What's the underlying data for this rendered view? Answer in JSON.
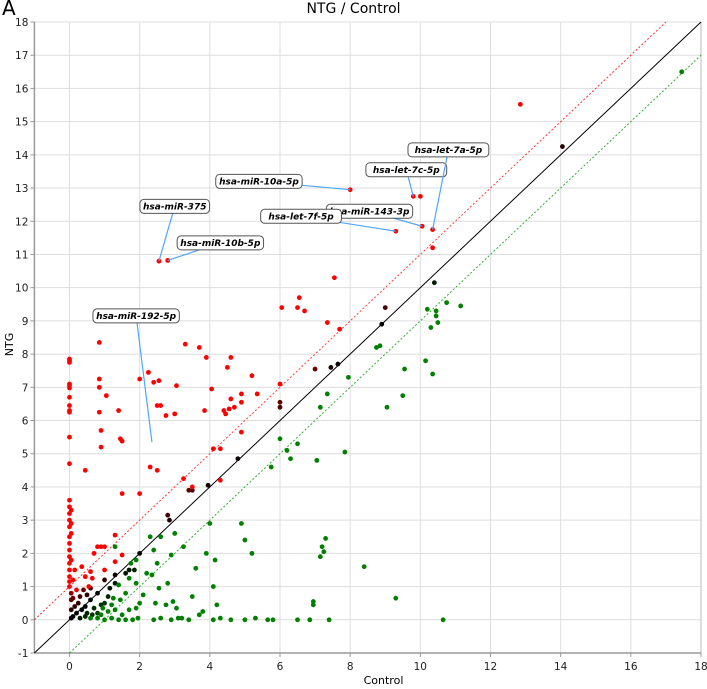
{
  "panel_letter": "A",
  "chart_data": {
    "type": "scatter",
    "title": "NTG / Control",
    "xlabel": "Control",
    "ylabel": "NTG",
    "xlim": [
      -1,
      18
    ],
    "ylim": [
      -1,
      18
    ],
    "x_ticks": [
      0,
      2,
      4,
      6,
      8,
      10,
      12,
      14,
      16,
      18
    ],
    "y_ticks": [
      -1,
      0,
      1,
      2,
      3,
      4,
      5,
      6,
      7,
      8,
      9,
      10,
      11,
      12,
      13,
      14,
      15,
      16,
      17,
      18
    ],
    "grid": true,
    "reference_lines": [
      {
        "name": "identity",
        "slope": 1,
        "intercept": 0,
        "color": "#000000",
        "style": "solid"
      },
      {
        "name": "upper-threshold",
        "slope": 1,
        "intercept": 1,
        "color": "#ff0000",
        "style": "dotted"
      },
      {
        "name": "lower-threshold",
        "slope": 1,
        "intercept": -1,
        "color": "#00a000",
        "style": "dotted"
      }
    ],
    "colors": {
      "up": "#ff0000",
      "neutral": "#000000",
      "down": "#008000",
      "leader": "#4da6ff"
    },
    "annotations": [
      {
        "label": "hsa-let-7c-5p",
        "x": 9.8,
        "y": 12.75,
        "label_x": 9.6,
        "label_y": 13.55
      },
      {
        "label": "hsa-let-7a-5p",
        "x": 10.35,
        "y": 11.75,
        "label_x": 10.8,
        "label_y": 14.15
      },
      {
        "label": "hsa-miR-10a-5p",
        "x": 8.0,
        "y": 12.95,
        "label_x": 5.4,
        "label_y": 13.2
      },
      {
        "label": "hsa-miR-143-3p",
        "x": 10.05,
        "y": 11.85,
        "label_x": 8.55,
        "label_y": 12.3
      },
      {
        "label": "hsa-let-7f-5p",
        "x": 9.3,
        "y": 11.7,
        "label_x": 6.6,
        "label_y": 12.15
      },
      {
        "label": "hsa-miR-375",
        "x": 2.55,
        "y": 10.8,
        "label_x": 3.0,
        "label_y": 12.45
      },
      {
        "label": "hsa-miR-10b-5p",
        "x": 2.8,
        "y": 10.82,
        "label_x": 4.3,
        "label_y": 11.35
      },
      {
        "label": "hsa-miR-192-5p",
        "x": 2.35,
        "y": 5.35,
        "label_x": 1.9,
        "label_y": 9.15
      }
    ],
    "points_up": [
      [
        12.85,
        15.52
      ],
      [
        10.0,
        12.75
      ],
      [
        8.0,
        12.95
      ],
      [
        9.8,
        12.75
      ],
      [
        10.05,
        11.85
      ],
      [
        10.35,
        11.75
      ],
      [
        9.3,
        11.7
      ],
      [
        2.55,
        10.8
      ],
      [
        2.8,
        10.82
      ],
      [
        10.35,
        11.2
      ],
      [
        7.55,
        10.3
      ],
      [
        6.55,
        9.7
      ],
      [
        6.5,
        9.4
      ],
      [
        6.05,
        9.4
      ],
      [
        6.7,
        9.3
      ],
      [
        7.7,
        8.75
      ],
      [
        7.35,
        8.95
      ],
      [
        0.0,
        7.85
      ],
      [
        0.0,
        7.8
      ],
      [
        0.0,
        7.75
      ],
      [
        0.85,
        8.35
      ],
      [
        0.0,
        7.1
      ],
      [
        0.0,
        7.05
      ],
      [
        0.0,
        6.98
      ],
      [
        0.0,
        6.7
      ],
      [
        0.0,
        6.45
      ],
      [
        0.0,
        6.3
      ],
      [
        0.0,
        6.25
      ],
      [
        0.0,
        5.5
      ],
      [
        0.0,
        4.7
      ],
      [
        0.85,
        7.25
      ],
      [
        0.85,
        7.0
      ],
      [
        0.85,
        6.25
      ],
      [
        0.9,
        5.7
      ],
      [
        0.9,
        5.2
      ],
      [
        1.05,
        6.75
      ],
      [
        1.4,
        6.3
      ],
      [
        1.45,
        5.45
      ],
      [
        1.5,
        5.38
      ],
      [
        0.45,
        4.5
      ],
      [
        2.5,
        6.45
      ],
      [
        2.0,
        7.25
      ],
      [
        2.4,
        7.15
      ],
      [
        2.25,
        7.45
      ],
      [
        2.55,
        7.2
      ],
      [
        2.6,
        6.45
      ],
      [
        2.75,
        6.15
      ],
      [
        2.5,
        4.5
      ],
      [
        2.3,
        4.6
      ],
      [
        3.0,
        6.2
      ],
      [
        3.05,
        7.05
      ],
      [
        3.25,
        4.25
      ],
      [
        3.3,
        8.3
      ],
      [
        3.7,
        8.2
      ],
      [
        3.9,
        7.9
      ],
      [
        3.85,
        6.3
      ],
      [
        4.05,
        6.95
      ],
      [
        4.5,
        7.6
      ],
      [
        4.6,
        7.9
      ],
      [
        4.55,
        6.35
      ],
      [
        4.6,
        6.65
      ],
      [
        4.4,
        6.3
      ],
      [
        4.45,
        6.2
      ],
      [
        4.7,
        6.4
      ],
      [
        4.9,
        6.8
      ],
      [
        4.9,
        6.55
      ],
      [
        5.35,
        6.8
      ],
      [
        5.2,
        7.35
      ],
      [
        4.1,
        5.15
      ],
      [
        4.3,
        5.15
      ],
      [
        4.9,
        5.65
      ],
      [
        6.0,
        7.1
      ],
      [
        4.3,
        4.2
      ],
      [
        2.0,
        3.8
      ],
      [
        1.5,
        3.8
      ],
      [
        3.5,
        4.0
      ],
      [
        0.0,
        3.6
      ],
      [
        0.0,
        3.4
      ],
      [
        0.0,
        3.2
      ],
      [
        0.0,
        3.0
      ],
      [
        0.0,
        2.8
      ],
      [
        0.0,
        2.5
      ],
      [
        0.0,
        2.3
      ],
      [
        0.0,
        2.1
      ],
      [
        0.0,
        1.9
      ],
      [
        0.0,
        1.7
      ],
      [
        0.0,
        1.5
      ],
      [
        0.0,
        1.3
      ],
      [
        0.0,
        1.15
      ],
      [
        0.0,
        1.0
      ],
      [
        0.05,
        3.3
      ],
      [
        0.05,
        2.9
      ],
      [
        0.05,
        2.6
      ],
      [
        0.05,
        1.8
      ],
      [
        0.1,
        1.2
      ],
      [
        0.15,
        1.5
      ],
      [
        0.2,
        0.9
      ],
      [
        0.8,
        2.2
      ],
      [
        0.9,
        2.2
      ],
      [
        1.0,
        2.2
      ],
      [
        0.7,
        2.0
      ],
      [
        0.35,
        1.6
      ],
      [
        0.45,
        1.3
      ],
      [
        0.55,
        1.0
      ],
      [
        1.3,
        2.55
      ],
      [
        1.5,
        1.95
      ],
      [
        1.3,
        1.75
      ],
      [
        0.6,
        1.45
      ],
      [
        0.65,
        1.25
      ],
      [
        1.0,
        1.5
      ]
    ],
    "points_neutral": [
      [
        14.05,
        14.25
      ],
      [
        10.4,
        10.15
      ],
      [
        9.0,
        9.4
      ],
      [
        8.9,
        8.9
      ],
      [
        7.65,
        7.7
      ],
      [
        7.45,
        7.6
      ],
      [
        7.0,
        7.55
      ],
      [
        6.0,
        6.55
      ],
      [
        6.0,
        6.4
      ],
      [
        4.8,
        4.85
      ],
      [
        3.5,
        3.9
      ],
      [
        3.4,
        3.9
      ],
      [
        3.95,
        4.05
      ],
      [
        2.8,
        3.15
      ],
      [
        2.85,
        3.0
      ],
      [
        2.0,
        2.0
      ],
      [
        1.85,
        1.5
      ],
      [
        1.7,
        1.5
      ],
      [
        1.6,
        1.4
      ],
      [
        1.3,
        1.35
      ],
      [
        1.3,
        1.1
      ],
      [
        1.0,
        1.2
      ],
      [
        1.15,
        0.95
      ],
      [
        0.4,
        0.9
      ],
      [
        0.6,
        0.95
      ],
      [
        0.5,
        0.75
      ],
      [
        0.3,
        0.7
      ],
      [
        0.8,
        0.8
      ],
      [
        0.25,
        0.5
      ],
      [
        0.45,
        0.4
      ],
      [
        0.6,
        0.6
      ],
      [
        0.35,
        0.3
      ],
      [
        0.7,
        0.35
      ],
      [
        0.2,
        0.2
      ],
      [
        0.1,
        0.1
      ],
      [
        0.15,
        0.4
      ],
      [
        0.5,
        0.2
      ],
      [
        0.05,
        0.05
      ],
      [
        0.3,
        0.05
      ],
      [
        0.45,
        0.1
      ],
      [
        0.65,
        0.15
      ],
      [
        0.8,
        0.2
      ],
      [
        1.0,
        0.5
      ],
      [
        1.1,
        0.7
      ],
      [
        0.9,
        0.45
      ],
      [
        0.05,
        0.3
      ],
      [
        0.05,
        0.6
      ],
      [
        0.05,
        0.8
      ],
      [
        0.1,
        0.65
      ]
    ],
    "points_down": [
      [
        17.45,
        16.5
      ],
      [
        10.45,
        9.3
      ],
      [
        10.75,
        9.55
      ],
      [
        11.15,
        9.45
      ],
      [
        10.2,
        9.35
      ],
      [
        10.45,
        9.15
      ],
      [
        10.3,
        8.8
      ],
      [
        10.5,
        8.95
      ],
      [
        8.75,
        8.2
      ],
      [
        9.55,
        7.55
      ],
      [
        8.85,
        8.25
      ],
      [
        10.15,
        7.8
      ],
      [
        10.35,
        7.4
      ],
      [
        9.5,
        6.75
      ],
      [
        9.05,
        6.4
      ],
      [
        7.95,
        7.3
      ],
      [
        7.15,
        6.4
      ],
      [
        7.35,
        6.8
      ],
      [
        7.85,
        5.05
      ],
      [
        7.05,
        4.8
      ],
      [
        6.5,
        5.3
      ],
      [
        6.2,
        5.1
      ],
      [
        6.3,
        4.85
      ],
      [
        6.0,
        5.45
      ],
      [
        5.75,
        4.6
      ],
      [
        7.3,
        2.45
      ],
      [
        7.2,
        2.2
      ],
      [
        7.25,
        2.05
      ],
      [
        7.15,
        1.9
      ],
      [
        6.95,
        0.55
      ],
      [
        6.95,
        0.45
      ],
      [
        8.4,
        1.6
      ],
      [
        9.3,
        0.65
      ],
      [
        10.65,
        0.0
      ],
      [
        4.9,
        2.9
      ],
      [
        4.0,
        2.9
      ],
      [
        3.25,
        2.2
      ],
      [
        3.6,
        1.55
      ],
      [
        4.1,
        1.0
      ],
      [
        4.2,
        0.45
      ],
      [
        5.2,
        2.0
      ],
      [
        5.0,
        2.4
      ],
      [
        4.15,
        1.8
      ],
      [
        3.9,
        2.0
      ],
      [
        1.3,
        2.2
      ],
      [
        2.4,
        2.1
      ],
      [
        2.6,
        2.5
      ],
      [
        2.5,
        1.7
      ],
      [
        1.9,
        1.8
      ],
      [
        2.35,
        1.35
      ],
      [
        2.3,
        2.5
      ],
      [
        2.8,
        1.1
      ],
      [
        2.9,
        1.95
      ],
      [
        3.0,
        2.6
      ],
      [
        1.4,
        1.05
      ],
      [
        1.7,
        1.25
      ],
      [
        1.9,
        1.1
      ],
      [
        2.1,
        0.75
      ],
      [
        2.45,
        0.5
      ],
      [
        2.75,
        0.45
      ],
      [
        2.95,
        0.55
      ],
      [
        3.05,
        0.35
      ],
      [
        3.2,
        0.05
      ],
      [
        3.5,
        0.7
      ],
      [
        3.7,
        0.15
      ],
      [
        2.4,
        0.0
      ],
      [
        2.6,
        0.05
      ],
      [
        2.9,
        0.0
      ],
      [
        3.1,
        0.05
      ],
      [
        3.4,
        0.0
      ],
      [
        3.8,
        0.25
      ],
      [
        4.1,
        0.0
      ],
      [
        4.3,
        0.05
      ],
      [
        4.6,
        0.0
      ],
      [
        5.0,
        0.0
      ],
      [
        5.3,
        0.05
      ],
      [
        5.65,
        0.0
      ],
      [
        5.8,
        0.0
      ],
      [
        6.5,
        0.0
      ],
      [
        6.85,
        0.0
      ],
      [
        7.4,
        0.0
      ],
      [
        1.0,
        0.0
      ],
      [
        1.2,
        0.05
      ],
      [
        1.4,
        0.0
      ],
      [
        1.6,
        0.0
      ],
      [
        1.8,
        0.0
      ],
      [
        1.95,
        0.05
      ],
      [
        1.3,
        0.3
      ],
      [
        1.5,
        0.15
      ],
      [
        1.7,
        0.3
      ],
      [
        1.9,
        0.35
      ],
      [
        2.0,
        0.5
      ],
      [
        0.6,
        0.05
      ],
      [
        0.8,
        0.05
      ],
      [
        0.9,
        0.15
      ],
      [
        1.1,
        0.25
      ],
      [
        1.2,
        0.45
      ],
      [
        0.95,
        0.35
      ],
      [
        1.45,
        0.6
      ],
      [
        1.6,
        0.8
      ],
      [
        1.75,
        1.7
      ],
      [
        2.2,
        1.4
      ],
      [
        2.55,
        0.95
      ],
      [
        1.25,
        0.65
      ]
    ]
  }
}
